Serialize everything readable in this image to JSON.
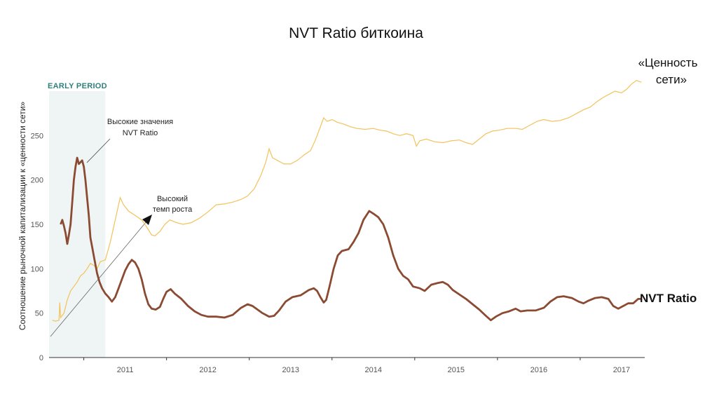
{
  "chart_data": {
    "type": "line",
    "title": "NVT Ratio биткоина",
    "xlabel": "",
    "ylabel": "Соотношение рыночной капитализации к «ценности сети»",
    "xlim": [
      2010.58,
      2017.78
    ],
    "ylim": [
      0,
      300
    ],
    "x_ticks": [
      "2011",
      "2012",
      "2013",
      "2014",
      "2015",
      "2016",
      "2017"
    ],
    "y_ticks": [
      "0",
      "50",
      "100",
      "150",
      "200",
      "250"
    ],
    "shaded_region": {
      "label": "EARLY PERIOD",
      "x_start": 2010.58,
      "x_end": 2011.26,
      "color": "#eef5f4"
    },
    "annotations": [
      {
        "text": [
          "Высокие значения",
          "NVT Ratio"
        ],
        "arrow": "line"
      },
      {
        "text": [
          "Высокий",
          "темп роста"
        ],
        "arrow": "arrowhead"
      }
    ],
    "series": [
      {
        "name": "NVT Ratio",
        "color": "#8b4a32",
        "points": [
          [
            2010.72,
            150
          ],
          [
            2010.74,
            155
          ],
          [
            2010.76,
            148
          ],
          [
            2010.78,
            140
          ],
          [
            2010.8,
            128
          ],
          [
            2010.82,
            138
          ],
          [
            2010.84,
            150
          ],
          [
            2010.86,
            175
          ],
          [
            2010.88,
            200
          ],
          [
            2010.9,
            215
          ],
          [
            2010.92,
            225
          ],
          [
            2010.94,
            218
          ],
          [
            2010.96,
            220
          ],
          [
            2010.98,
            222
          ],
          [
            2011.0,
            215
          ],
          [
            2011.02,
            200
          ],
          [
            2011.04,
            180
          ],
          [
            2011.06,
            160
          ],
          [
            2011.08,
            135
          ],
          [
            2011.1,
            125
          ],
          [
            2011.13,
            110
          ],
          [
            2011.16,
            95
          ],
          [
            2011.19,
            85
          ],
          [
            2011.22,
            78
          ],
          [
            2011.26,
            72
          ],
          [
            2011.3,
            68
          ],
          [
            2011.34,
            63
          ],
          [
            2011.38,
            68
          ],
          [
            2011.42,
            78
          ],
          [
            2011.46,
            88
          ],
          [
            2011.5,
            98
          ],
          [
            2011.54,
            105
          ],
          [
            2011.58,
            110
          ],
          [
            2011.62,
            107
          ],
          [
            2011.66,
            100
          ],
          [
            2011.7,
            88
          ],
          [
            2011.74,
            72
          ],
          [
            2011.78,
            60
          ],
          [
            2011.82,
            55
          ],
          [
            2011.87,
            54
          ],
          [
            2011.92,
            57
          ],
          [
            2011.96,
            66
          ],
          [
            2012.0,
            74
          ],
          [
            2012.05,
            77
          ],
          [
            2012.1,
            72
          ],
          [
            2012.18,
            66
          ],
          [
            2012.26,
            58
          ],
          [
            2012.34,
            52
          ],
          [
            2012.42,
            48
          ],
          [
            2012.5,
            46
          ],
          [
            2012.6,
            46
          ],
          [
            2012.7,
            45
          ],
          [
            2012.8,
            48
          ],
          [
            2012.9,
            56
          ],
          [
            2012.98,
            60
          ],
          [
            2013.04,
            58
          ],
          [
            2013.1,
            54
          ],
          [
            2013.16,
            50
          ],
          [
            2013.24,
            46
          ],
          [
            2013.3,
            47
          ],
          [
            2013.36,
            53
          ],
          [
            2013.44,
            63
          ],
          [
            2013.52,
            68
          ],
          [
            2013.62,
            70
          ],
          [
            2013.72,
            76
          ],
          [
            2013.78,
            78
          ],
          [
            2013.82,
            75
          ],
          [
            2013.86,
            68
          ],
          [
            2013.9,
            62
          ],
          [
            2013.93,
            65
          ],
          [
            2013.97,
            80
          ],
          [
            2014.02,
            100
          ],
          [
            2014.07,
            115
          ],
          [
            2014.12,
            120
          ],
          [
            2014.2,
            122
          ],
          [
            2014.26,
            130
          ],
          [
            2014.32,
            140
          ],
          [
            2014.38,
            155
          ],
          [
            2014.45,
            165
          ],
          [
            2014.5,
            162
          ],
          [
            2014.56,
            158
          ],
          [
            2014.62,
            150
          ],
          [
            2014.68,
            135
          ],
          [
            2014.74,
            115
          ],
          [
            2014.8,
            100
          ],
          [
            2014.86,
            92
          ],
          [
            2014.92,
            88
          ],
          [
            2014.98,
            80
          ],
          [
            2015.06,
            78
          ],
          [
            2015.12,
            75
          ],
          [
            2015.2,
            82
          ],
          [
            2015.28,
            84
          ],
          [
            2015.34,
            85
          ],
          [
            2015.4,
            82
          ],
          [
            2015.46,
            76
          ],
          [
            2015.54,
            71
          ],
          [
            2015.62,
            66
          ],
          [
            2015.7,
            60
          ],
          [
            2015.78,
            54
          ],
          [
            2015.86,
            47
          ],
          [
            2015.92,
            42
          ],
          [
            2015.98,
            46
          ],
          [
            2016.06,
            50
          ],
          [
            2016.14,
            52
          ],
          [
            2016.22,
            55
          ],
          [
            2016.28,
            52
          ],
          [
            2016.36,
            53
          ],
          [
            2016.46,
            53
          ],
          [
            2016.56,
            56
          ],
          [
            2016.64,
            63
          ],
          [
            2016.72,
            68
          ],
          [
            2016.8,
            69
          ],
          [
            2016.9,
            67
          ],
          [
            2016.98,
            63
          ],
          [
            2017.04,
            61
          ],
          [
            2017.1,
            64
          ],
          [
            2017.18,
            67
          ],
          [
            2017.26,
            68
          ],
          [
            2017.34,
            66
          ],
          [
            2017.4,
            58
          ],
          [
            2017.46,
            55
          ],
          [
            2017.52,
            58
          ],
          [
            2017.58,
            61
          ],
          [
            2017.64,
            61
          ],
          [
            2017.7,
            66
          ],
          [
            2017.73,
            66
          ]
        ]
      },
      {
        "name": "«Ценность сети»",
        "color": "#f3c25a",
        "points": [
          [
            2010.62,
            42
          ],
          [
            2010.66,
            41
          ],
          [
            2010.7,
            42
          ],
          [
            2010.71,
            62
          ],
          [
            2010.72,
            45
          ],
          [
            2010.76,
            50
          ],
          [
            2010.8,
            65
          ],
          [
            2010.84,
            75
          ],
          [
            2010.88,
            80
          ],
          [
            2010.92,
            85
          ],
          [
            2010.96,
            92
          ],
          [
            2011.0,
            95
          ],
          [
            2011.04,
            100
          ],
          [
            2011.08,
            106
          ],
          [
            2011.12,
            104
          ],
          [
            2011.16,
            100
          ],
          [
            2011.2,
            108
          ],
          [
            2011.26,
            110
          ],
          [
            2011.32,
            130
          ],
          [
            2011.38,
            155
          ],
          [
            2011.44,
            180
          ],
          [
            2011.48,
            172
          ],
          [
            2011.54,
            165
          ],
          [
            2011.62,
            160
          ],
          [
            2011.7,
            155
          ],
          [
            2011.76,
            147
          ],
          [
            2011.82,
            138
          ],
          [
            2011.86,
            137
          ],
          [
            2011.92,
            142
          ],
          [
            2011.98,
            150
          ],
          [
            2012.04,
            155
          ],
          [
            2012.12,
            152
          ],
          [
            2012.2,
            150
          ],
          [
            2012.3,
            152
          ],
          [
            2012.4,
            157
          ],
          [
            2012.5,
            164
          ],
          [
            2012.6,
            172
          ],
          [
            2012.7,
            173
          ],
          [
            2012.8,
            175
          ],
          [
            2012.9,
            178
          ],
          [
            2012.98,
            182
          ],
          [
            2013.06,
            190
          ],
          [
            2013.14,
            205
          ],
          [
            2013.2,
            220
          ],
          [
            2013.24,
            235
          ],
          [
            2013.28,
            225
          ],
          [
            2013.34,
            222
          ],
          [
            2013.42,
            218
          ],
          [
            2013.5,
            218
          ],
          [
            2013.58,
            222
          ],
          [
            2013.66,
            228
          ],
          [
            2013.74,
            233
          ],
          [
            2013.8,
            245
          ],
          [
            2013.86,
            260
          ],
          [
            2013.9,
            270
          ],
          [
            2013.94,
            266
          ],
          [
            2014.0,
            268
          ],
          [
            2014.06,
            265
          ],
          [
            2014.14,
            263
          ],
          [
            2014.22,
            260
          ],
          [
            2014.3,
            258
          ],
          [
            2014.4,
            257
          ],
          [
            2014.5,
            258
          ],
          [
            2014.58,
            256
          ],
          [
            2014.66,
            255
          ],
          [
            2014.74,
            252
          ],
          [
            2014.82,
            250
          ],
          [
            2014.9,
            252
          ],
          [
            2014.98,
            250
          ],
          [
            2015.02,
            238
          ],
          [
            2015.06,
            244
          ],
          [
            2015.14,
            246
          ],
          [
            2015.24,
            243
          ],
          [
            2015.34,
            242
          ],
          [
            2015.44,
            244
          ],
          [
            2015.54,
            245
          ],
          [
            2015.62,
            242
          ],
          [
            2015.7,
            240
          ],
          [
            2015.78,
            246
          ],
          [
            2015.86,
            252
          ],
          [
            2015.94,
            255
          ],
          [
            2016.02,
            256
          ],
          [
            2016.12,
            258
          ],
          [
            2016.22,
            258
          ],
          [
            2016.3,
            257
          ],
          [
            2016.4,
            262
          ],
          [
            2016.48,
            266
          ],
          [
            2016.56,
            268
          ],
          [
            2016.66,
            266
          ],
          [
            2016.76,
            267
          ],
          [
            2016.86,
            270
          ],
          [
            2016.96,
            275
          ],
          [
            2017.04,
            279
          ],
          [
            2017.12,
            282
          ],
          [
            2017.2,
            288
          ],
          [
            2017.28,
            293
          ],
          [
            2017.36,
            297
          ],
          [
            2017.42,
            300
          ],
          [
            2017.5,
            298
          ],
          [
            2017.56,
            302
          ],
          [
            2017.62,
            308
          ],
          [
            2017.68,
            312
          ],
          [
            2017.74,
            310
          ]
        ]
      }
    ]
  }
}
